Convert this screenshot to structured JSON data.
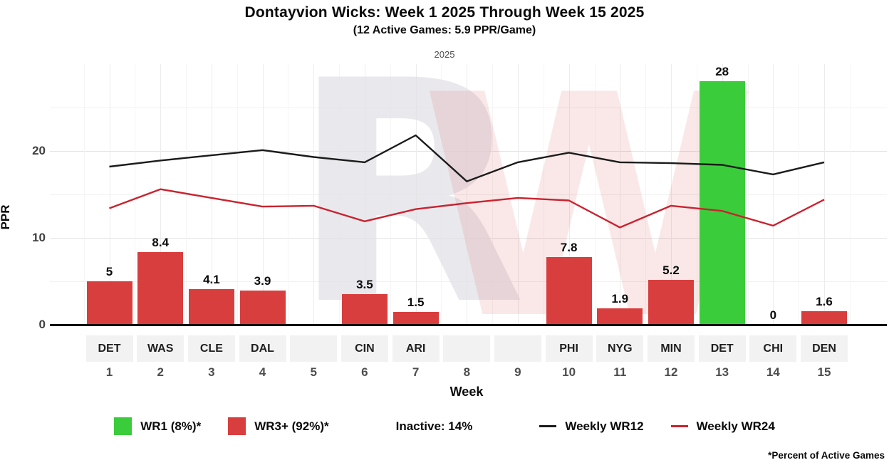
{
  "title": "Dontayvion Wicks: Week 1 2025 Through Week 15 2025",
  "subtitle": "(12 Active Games: 5.9 PPR/Game)",
  "facet_label": "2025",
  "watermark": {
    "gray_letter": "R",
    "red_letter": "W"
  },
  "y_axis": {
    "label": "PPR",
    "major_ticks": [
      0,
      10,
      20
    ],
    "minor_ticks": [
      5,
      15,
      25
    ]
  },
  "x_axis": {
    "label": "Week"
  },
  "legend": {
    "wr1_label": "WR1 (8%)*",
    "wr3_label": "WR3+ (92%)*",
    "inactive_label": "Inactive: 14%",
    "wr12_label": "Weekly WR12",
    "wr24_label": "Weekly WR24"
  },
  "footnote": "*Percent of Active Games",
  "colors": {
    "bar_red": "#D93E3E",
    "bar_green": "#3BCC3B",
    "line_black": "#1B1B1B",
    "line_red": "#C8232F",
    "tick_gray": "#4d4d4d"
  },
  "chart_data": {
    "type": "bar+line",
    "title": "Dontayvion Wicks: Week 1 2025 Through Week 15 2025",
    "subtitle": "(12 Active Games: 5.9 PPR/Game)",
    "xlabel": "Week",
    "ylabel": "PPR",
    "ylim": [
      0,
      30
    ],
    "grid": true,
    "legend_position": "bottom",
    "weeks": [
      1,
      2,
      3,
      4,
      5,
      6,
      7,
      8,
      9,
      10,
      11,
      12,
      13,
      14,
      15
    ],
    "teams": [
      "DET",
      "WAS",
      "CLE",
      "DAL",
      "",
      "CIN",
      "ARI",
      "",
      "",
      "PHI",
      "NYG",
      "MIN",
      "DET",
      "CHI",
      "DEN"
    ],
    "bars": {
      "name": "Weekly PPR",
      "values": [
        5,
        8.4,
        4.1,
        3.9,
        null,
        3.5,
        1.5,
        null,
        null,
        7.8,
        1.9,
        5.2,
        28,
        0,
        1.6
      ],
      "labels": [
        "5",
        "8.4",
        "4.1",
        "3.9",
        "",
        "3.5",
        "1.5",
        "",
        "",
        "7.8",
        "1.9",
        "5.2",
        "28",
        "0",
        "1.6"
      ],
      "tiers": [
        "WR3+",
        "WR3+",
        "WR3+",
        "WR3+",
        null,
        "WR3+",
        "WR3+",
        null,
        null,
        "WR3+",
        "WR3+",
        "WR3+",
        "WR1",
        "WR3+",
        "WR3+"
      ]
    },
    "series": [
      {
        "name": "Weekly WR12",
        "color_key": "line_black",
        "values": [
          18.2,
          18.9,
          19.5,
          20.1,
          19.3,
          18.7,
          21.8,
          16.5,
          18.7,
          19.8,
          18.7,
          18.6,
          18.4,
          17.3,
          18.7
        ]
      },
      {
        "name": "Weekly WR24",
        "color_key": "line_red",
        "values": [
          13.4,
          15.6,
          14.6,
          13.6,
          13.7,
          11.9,
          13.3,
          14.0,
          14.6,
          14.3,
          11.2,
          13.7,
          13.1,
          11.4,
          14.4
        ]
      }
    ]
  }
}
